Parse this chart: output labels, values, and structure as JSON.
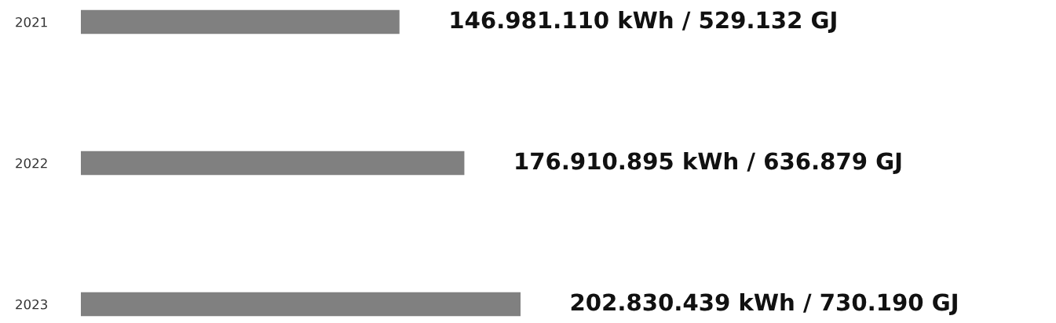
{
  "chart_data": {
    "type": "bar",
    "orientation": "horizontal",
    "categories": [
      "2021",
      "2022",
      "2023"
    ],
    "values": [
      146981110,
      176910895,
      202830439
    ],
    "value_labels": [
      "146.981.110 kWh / 529.132 GJ",
      "176.910.895 kWh / 636.879 GJ",
      "202.830.439 kWh / 730.190 GJ"
    ],
    "color": "#808080",
    "tick_labels": "y",
    "grid": false,
    "legend": false
  }
}
